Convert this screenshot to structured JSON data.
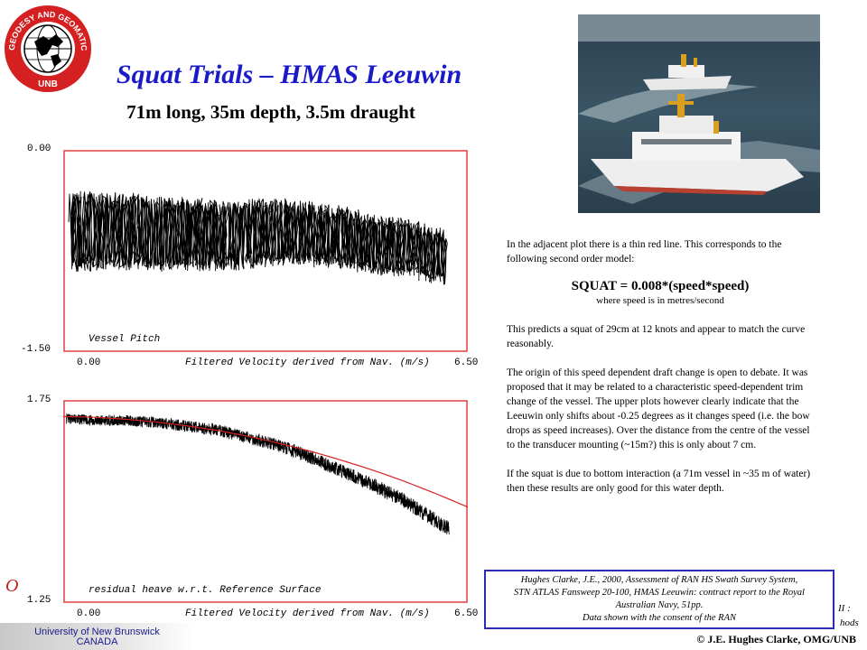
{
  "logo": {
    "ring_text": "GEODESY AND GEOMATICS ENGINEERING",
    "bottom_text": "UNB",
    "color": "#d42020"
  },
  "header": {
    "title": "Squat Trials – HMAS Leeuwin",
    "subtitle": "71m long, 35m depth, 3.5m draught"
  },
  "photo": {
    "icon": "survey-ships-photo"
  },
  "plot_top": {
    "y_max_label": "0.00",
    "y_min_label": "-1.50",
    "x_min_label": "0.00",
    "x_max_label": "6.50",
    "x_axis_label": "Filtered Velocity derived from Nav. (m/s)",
    "inner_label": "Vessel Pitch",
    "frame_color": "#e04040"
  },
  "plot_bottom": {
    "y_max_label": "1.75",
    "y_min_label": "1.25",
    "x_min_label": "0.00",
    "x_max_label": "6.50",
    "x_axis_label": "Filtered Velocity derived from Nav. (m/s)",
    "inner_label": "residual heave w.r.t. Reference Surface",
    "frame_color": "#e04040",
    "model_line_color": "#d82020"
  },
  "chart_data": [
    {
      "type": "line",
      "xlabel": "Filtered Velocity derived from Nav. (m/s)",
      "ylabel": "",
      "xlim": [
        0.0,
        6.5
      ],
      "ylim": [
        -1.5,
        0.0
      ],
      "annotation": "Vessel Pitch",
      "series": [
        {
          "values_x": [
            0.0,
            0.5,
            1.0,
            1.5,
            2.0,
            2.5,
            3.0,
            3.5,
            4.0,
            4.5,
            5.0,
            5.5,
            6.0,
            6.2
          ],
          "values_y": [
            -0.6,
            -0.6,
            -0.6,
            -0.62,
            -0.62,
            -0.63,
            -0.62,
            -0.6,
            -0.62,
            -0.65,
            -0.7,
            -0.72,
            -0.78,
            -0.8
          ]
        }
      ]
    },
    {
      "type": "line",
      "xlabel": "Filtered Velocity derived from Nav. (m/s)",
      "ylabel": "",
      "xlim": [
        0.0,
        6.5
      ],
      "ylim": [
        1.25,
        1.75
      ],
      "annotation": "residual heave w.r.t. Reference Surface",
      "series": [
        {
          "values_x": [
            0.0,
            0.5,
            1.0,
            1.5,
            2.0,
            2.5,
            3.0,
            3.5,
            4.0,
            4.5,
            5.0,
            5.5,
            6.0,
            6.2
          ],
          "values_y": [
            1.71,
            1.705,
            1.705,
            1.7,
            1.69,
            1.68,
            1.66,
            1.64,
            1.61,
            1.575,
            1.54,
            1.5,
            1.45,
            1.43
          ]
        },
        {
          "values_x": [
            0.0,
            0.5,
            1.0,
            1.5,
            2.0,
            2.5,
            3.0,
            3.5,
            4.0,
            4.5,
            5.0,
            5.5,
            6.0,
            6.5
          ],
          "values_y": [
            1.715,
            1.713,
            1.708,
            1.701,
            1.691,
            1.679,
            1.664,
            1.646,
            1.626,
            1.603,
            1.578,
            1.55,
            1.519,
            1.486
          ]
        }
      ]
    }
  ],
  "text": {
    "para1": "In the adjacent plot there is a thin red line. This corresponds to the following second order model:",
    "formula": "SQUAT = 0.008*(speed*speed)",
    "formula_note": "where speed is in metres/second",
    "para2": "This predicts a squat of 29cm at 12 knots and appear to match the curve reasonably.",
    "para3": "The origin of this speed dependent draft change is open to debate. It was proposed that it may be related to a characteristic speed-dependent trim change of the vessel. The upper plots however clearly indicate that the Leeuwin only shifts about -0.25 degrees as it  changes speed (i.e. the bow drops as speed increases). Over the distance from the centre of the vessel to the transducer mounting  (~15m?) this is only about 7 cm.",
    "para4": "If the squat is due to bottom interaction (a 71m vessel in ~35 m of water) then these results are only good for this water depth."
  },
  "citation": {
    "line1": "Hughes Clarke, J.E., 2000, Assessment of RAN HS Swath Survey System,",
    "line2": "STN ATLAS Fansweep 20-100, HMAS Leeuwin: contract report to the Royal",
    "line3": "Australian Navy, 51pp.",
    "line4": "Data shown with the consent of the RAN",
    "border_color": "#2a2ab8"
  },
  "footer": {
    "unb_line1": "University of New Brunswick",
    "unb_line2": "CANADA",
    "copyright": "© J.E. Hughes Clarke, OMG/UNB",
    "side_frag1": "II :",
    "side_frag2": "hods",
    "left_frag": "O"
  }
}
